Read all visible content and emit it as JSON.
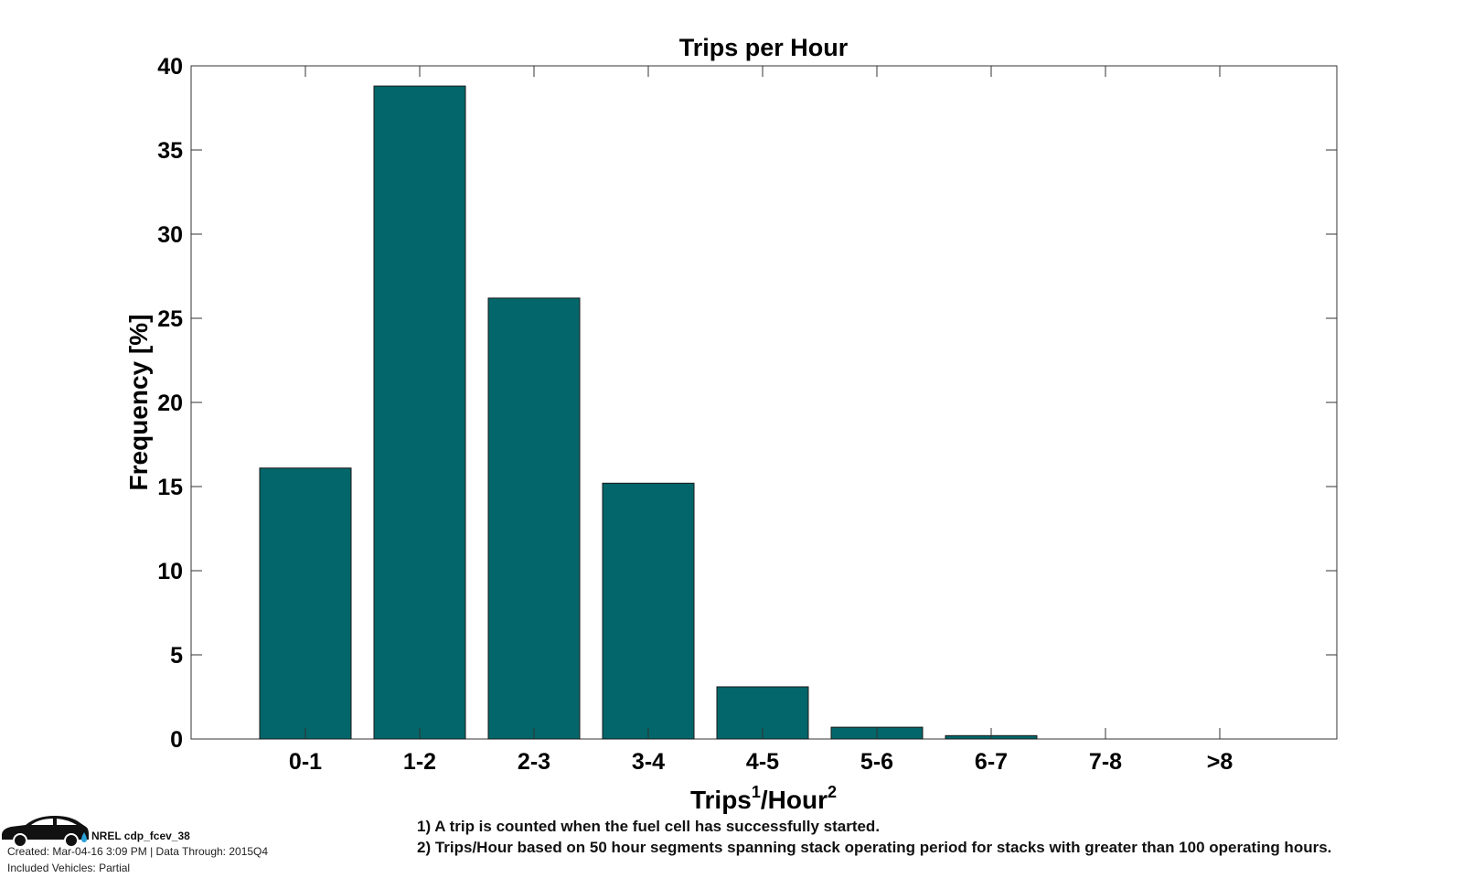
{
  "chart_data": {
    "type": "bar",
    "title": "Trips per Hour",
    "xlabel": {
      "main": "Trips",
      "sup1": "1",
      "mid": "/Hour",
      "sup2": "2"
    },
    "ylabel": "Frequency [%]",
    "ylim": [
      0,
      40
    ],
    "yticks": [
      "0",
      "5",
      "10",
      "15",
      "20",
      "25",
      "30",
      "35",
      "40"
    ],
    "categories": [
      "0-1",
      "1-2",
      "2-3",
      "3-4",
      "4-5",
      "5-6",
      "6-7",
      "7-8",
      ">8"
    ],
    "values": [
      16.1,
      38.8,
      26.2,
      15.2,
      3.1,
      0.7,
      0.2,
      0,
      0
    ],
    "bar_color": "#03666a",
    "grid": false,
    "legend": "none"
  },
  "footer": {
    "id_label": "NREL cdp_fcev_38",
    "created": "Created: Mar-04-16  3:09 PM | Data Through: 2015Q4",
    "vehicles": "Included Vehicles: Partial",
    "note1": "1) A trip is counted when the fuel cell has successfully started.",
    "note2": "2) Trips/Hour based on 50 hour segments spanning stack operating period for stacks with greater than 100 operating hours."
  },
  "logo": {
    "icon": "car-icon",
    "color": "#111111",
    "drop_color": "#2aa0d8"
  }
}
